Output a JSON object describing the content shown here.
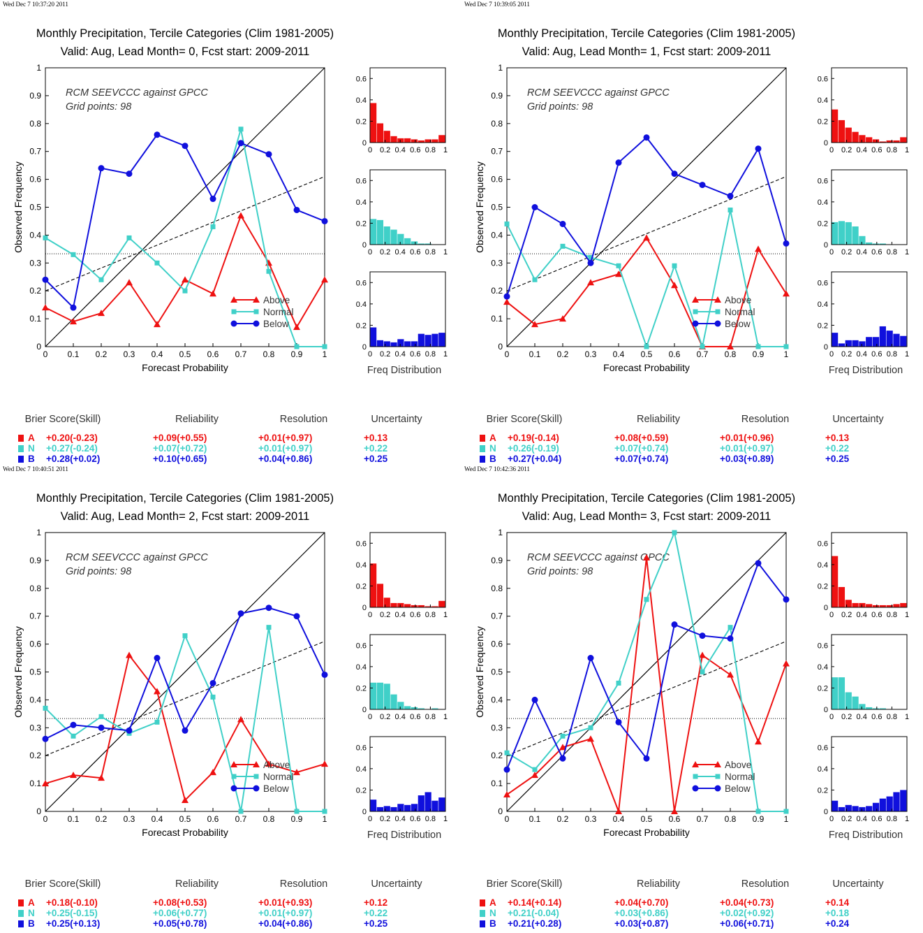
{
  "colors": {
    "above": "#ee1111",
    "normal": "#40d0c8",
    "below": "#1010dd",
    "axis": "#000000"
  },
  "panels": [
    {
      "timestamp": "Wed Dec  7 10:37:20 2011",
      "title": "Monthly Precipitation, Tercile Categories (Clim 1981-2005)",
      "subtitle": "Valid: Aug, Lead Month= 0, Fcst start: 2009-2011",
      "annot_line1": "RCM SEEVCCC against GPCC",
      "annot_line2": "Grid points:    98",
      "xlabel": "Forecast Probability",
      "ylabel": "Observed Frequency",
      "freq_label": "Freq Distribution",
      "legend": [
        "Above",
        "Normal",
        "Below"
      ],
      "chart_data": {
        "type": "line",
        "x": [
          0,
          0.1,
          0.2,
          0.3,
          0.4,
          0.5,
          0.6,
          0.7,
          0.8,
          0.9,
          1
        ],
        "xlim": [
          0,
          1
        ],
        "ylim": [
          0,
          1
        ],
        "climatology": 0.333,
        "skill_line": [
          [
            0,
            0.2
          ],
          [
            1,
            0.61
          ]
        ],
        "series": [
          {
            "name": "Above",
            "values": [
              0.14,
              0.09,
              0.12,
              0.23,
              0.08,
              0.24,
              0.19,
              0.47,
              0.3,
              0.07,
              0.24
            ]
          },
          {
            "name": "Normal",
            "values": [
              0.39,
              0.33,
              0.24,
              0.39,
              0.3,
              0.2,
              0.43,
              0.78,
              0.27,
              0.0,
              0.0
            ]
          },
          {
            "name": "Below",
            "values": [
              0.24,
              0.14,
              0.64,
              0.62,
              0.76,
              0.72,
              0.53,
              0.73,
              0.69,
              0.49,
              0.45
            ]
          }
        ],
        "freq": [
          {
            "name": "Above",
            "values": [
              0.37,
              0.18,
              0.11,
              0.06,
              0.04,
              0.04,
              0.03,
              0.02,
              0.03,
              0.03,
              0.07
            ]
          },
          {
            "name": "Normal",
            "values": [
              0.24,
              0.23,
              0.17,
              0.14,
              0.1,
              0.06,
              0.03,
              0.01,
              0.01,
              0.0,
              0.0
            ]
          },
          {
            "name": "Below",
            "values": [
              0.18,
              0.06,
              0.05,
              0.04,
              0.07,
              0.05,
              0.05,
              0.12,
              0.11,
              0.12,
              0.13
            ]
          }
        ]
      },
      "scores": {
        "headers": [
          "Brier Score(Skill)",
          "Reliability",
          "Resolution",
          "Uncertainty"
        ],
        "rows": [
          {
            "cat": "A",
            "brier": "+0.20(-0.23)",
            "rel": "+0.09(+0.55)",
            "res": "+0.01(+0.97)",
            "unc": "+0.13"
          },
          {
            "cat": "N",
            "brier": "+0.27(-0.24)",
            "rel": "+0.07(+0.72)",
            "res": "+0.01(+0.97)",
            "unc": "+0.22"
          },
          {
            "cat": "B",
            "brier": "+0.28(+0.02)",
            "rel": "+0.10(+0.65)",
            "res": "+0.04(+0.86)",
            "unc": "+0.25"
          }
        ]
      }
    },
    {
      "timestamp": "Wed Dec  7 10:39:05 2011",
      "title": "Monthly Precipitation, Tercile Categories (Clim 1981-2005)",
      "subtitle": "Valid: Aug, Lead Month= 1, Fcst start: 2009-2011",
      "annot_line1": "RCM SEEVCCC against GPCC",
      "annot_line2": "Grid points:    98",
      "xlabel": "Forecast Probability",
      "ylabel": "Observed Frequency",
      "freq_label": "Freq Distribution",
      "legend": [
        "Above",
        "Normal",
        "Below"
      ],
      "chart_data": {
        "type": "line",
        "x": [
          0,
          0.1,
          0.2,
          0.3,
          0.4,
          0.5,
          0.6,
          0.7,
          0.8,
          0.9,
          1
        ],
        "xlim": [
          0,
          1
        ],
        "ylim": [
          0,
          1
        ],
        "climatology": 0.333,
        "skill_line": [
          [
            0,
            0.2
          ],
          [
            1,
            0.61
          ]
        ],
        "series": [
          {
            "name": "Above",
            "values": [
              0.16,
              0.08,
              0.1,
              0.23,
              0.26,
              0.39,
              0.22,
              0.0,
              0.0,
              0.35,
              0.19
            ]
          },
          {
            "name": "Normal",
            "values": [
              0.44,
              0.24,
              0.36,
              0.32,
              0.29,
              0.0,
              0.29,
              0.0,
              0.49,
              0.0,
              0.0
            ]
          },
          {
            "name": "Below",
            "values": [
              0.18,
              0.5,
              0.44,
              0.3,
              0.66,
              0.75,
              0.62,
              0.58,
              0.54,
              0.71,
              0.37
            ]
          }
        ],
        "freq": [
          {
            "name": "Above",
            "values": [
              0.31,
              0.21,
              0.14,
              0.1,
              0.07,
              0.05,
              0.03,
              0.01,
              0.02,
              0.02,
              0.05
            ]
          },
          {
            "name": "Normal",
            "values": [
              0.21,
              0.22,
              0.21,
              0.17,
              0.08,
              0.02,
              0.01,
              0.01,
              0.0,
              0.0,
              0.0
            ]
          },
          {
            "name": "Below",
            "values": [
              0.13,
              0.03,
              0.06,
              0.06,
              0.05,
              0.09,
              0.09,
              0.19,
              0.15,
              0.12,
              0.1
            ]
          }
        ]
      },
      "scores": {
        "headers": [
          "Brier Score(Skill)",
          "Reliability",
          "Resolution",
          "Uncertainty"
        ],
        "rows": [
          {
            "cat": "A",
            "brier": "+0.19(-0.14)",
            "rel": "+0.08(+0.59)",
            "res": "+0.01(+0.96)",
            "unc": "+0.13"
          },
          {
            "cat": "N",
            "brier": "+0.26(-0.19)",
            "rel": "+0.07(+0.74)",
            "res": "+0.01(+0.97)",
            "unc": "+0.22"
          },
          {
            "cat": "B",
            "brier": "+0.27(+0.04)",
            "rel": "+0.07(+0.74)",
            "res": "+0.03(+0.89)",
            "unc": "+0.25"
          }
        ]
      }
    },
    {
      "timestamp": "Wed Dec  7 10:40:51 2011",
      "title": "Monthly Precipitation, Tercile Categories (Clim 1981-2005)",
      "subtitle": "Valid: Aug, Lead Month= 2, Fcst start: 2009-2011",
      "annot_line1": "RCM SEEVCCC against GPCC",
      "annot_line2": "Grid points:    98",
      "xlabel": "Forecast Probability",
      "ylabel": "Observed Frequency",
      "freq_label": "Freq Distribution",
      "legend": [
        "Above",
        "Normal",
        "Below"
      ],
      "chart_data": {
        "type": "line",
        "x": [
          0,
          0.1,
          0.2,
          0.3,
          0.4,
          0.5,
          0.6,
          0.7,
          0.8,
          0.9,
          1
        ],
        "xlim": [
          0,
          1
        ],
        "ylim": [
          0,
          1
        ],
        "climatology": 0.333,
        "skill_line": [
          [
            0,
            0.2
          ],
          [
            1,
            0.61
          ]
        ],
        "series": [
          {
            "name": "Above",
            "values": [
              0.1,
              0.13,
              0.12,
              0.56,
              0.43,
              0.04,
              0.14,
              0.33,
              0.17,
              0.14,
              0.17
            ]
          },
          {
            "name": "Normal",
            "values": [
              0.37,
              0.27,
              0.34,
              0.28,
              0.32,
              0.63,
              0.41,
              0.0,
              0.66,
              0.0,
              0.0
            ]
          },
          {
            "name": "Below",
            "values": [
              0.26,
              0.31,
              0.3,
              0.29,
              0.55,
              0.29,
              0.46,
              0.71,
              0.73,
              0.7,
              0.49
            ]
          }
        ],
        "freq": [
          {
            "name": "Above",
            "values": [
              0.41,
              0.22,
              0.09,
              0.04,
              0.04,
              0.03,
              0.02,
              0.02,
              0.01,
              0.01,
              0.06
            ]
          },
          {
            "name": "Normal",
            "values": [
              0.25,
              0.25,
              0.24,
              0.14,
              0.07,
              0.03,
              0.02,
              0.01,
              0.0,
              0.01,
              0.0
            ]
          },
          {
            "name": "Below",
            "values": [
              0.11,
              0.04,
              0.05,
              0.04,
              0.07,
              0.06,
              0.07,
              0.15,
              0.18,
              0.1,
              0.13
            ]
          }
        ]
      },
      "scores": {
        "headers": [
          "Brier Score(Skill)",
          "Reliability",
          "Resolution",
          "Uncertainty"
        ],
        "rows": [
          {
            "cat": "A",
            "brier": "+0.18(-0.10)",
            "rel": "+0.08(+0.53)",
            "res": "+0.01(+0.93)",
            "unc": "+0.12"
          },
          {
            "cat": "N",
            "brier": "+0.25(-0.15)",
            "rel": "+0.06(+0.77)",
            "res": "+0.01(+0.97)",
            "unc": "+0.22"
          },
          {
            "cat": "B",
            "brier": "+0.25(+0.13)",
            "rel": "+0.05(+0.78)",
            "res": "+0.04(+0.86)",
            "unc": "+0.25"
          }
        ]
      }
    },
    {
      "timestamp": "Wed Dec  7 10:42:36 2011",
      "title": "Monthly Precipitation, Tercile Categories (Clim 1981-2005)",
      "subtitle": "Valid: Aug, Lead Month= 3, Fcst start: 2009-2011",
      "annot_line1": "RCM SEEVCCC against GPCC",
      "annot_line2": "Grid points:    98",
      "xlabel": "Forecast Probability",
      "ylabel": "Observed Frequency",
      "freq_label": "Freq Distribution",
      "legend": [
        "Above",
        "Normal",
        "Below"
      ],
      "chart_data": {
        "type": "line",
        "x": [
          0,
          0.1,
          0.2,
          0.3,
          0.4,
          0.5,
          0.6,
          0.7,
          0.8,
          0.9,
          1
        ],
        "xlim": [
          0,
          1
        ],
        "ylim": [
          0,
          1
        ],
        "climatology": 0.333,
        "skill_line": [
          [
            0,
            0.2
          ],
          [
            1,
            0.61
          ]
        ],
        "series": [
          {
            "name": "Above",
            "values": [
              0.06,
              0.13,
              0.23,
              0.26,
              0.0,
              0.91,
              0.0,
              0.56,
              0.49,
              0.25,
              0.53
            ]
          },
          {
            "name": "Normal",
            "values": [
              0.21,
              0.15,
              0.27,
              0.3,
              0.46,
              0.76,
              1.0,
              0.5,
              0.66,
              0.0,
              0.0
            ]
          },
          {
            "name": "Below",
            "values": [
              0.15,
              0.4,
              0.19,
              0.55,
              0.32,
              0.19,
              0.67,
              0.63,
              0.62,
              0.89,
              0.76
            ]
          }
        ],
        "freq": [
          {
            "name": "Above",
            "values": [
              0.48,
              0.19,
              0.07,
              0.04,
              0.04,
              0.03,
              0.02,
              0.02,
              0.02,
              0.03,
              0.04
            ]
          },
          {
            "name": "Normal",
            "values": [
              0.3,
              0.3,
              0.16,
              0.12,
              0.05,
              0.02,
              0.01,
              0.01,
              0.0,
              0.0,
              0.0
            ]
          },
          {
            "name": "Below",
            "values": [
              0.1,
              0.04,
              0.06,
              0.05,
              0.04,
              0.05,
              0.08,
              0.12,
              0.14,
              0.18,
              0.2
            ]
          }
        ]
      },
      "scores": {
        "headers": [
          "Brier Score(Skill)",
          "Reliability",
          "Resolution",
          "Uncertainty"
        ],
        "rows": [
          {
            "cat": "A",
            "brier": "+0.14(+0.14)",
            "rel": "+0.04(+0.70)",
            "res": "+0.04(+0.73)",
            "unc": "+0.14"
          },
          {
            "cat": "N",
            "brier": "+0.21(-0.04)",
            "rel": "+0.03(+0.86)",
            "res": "+0.02(+0.92)",
            "unc": "+0.18"
          },
          {
            "cat": "B",
            "brier": "+0.21(+0.28)",
            "rel": "+0.03(+0.87)",
            "res": "+0.06(+0.71)",
            "unc": "+0.24"
          }
        ]
      }
    }
  ]
}
